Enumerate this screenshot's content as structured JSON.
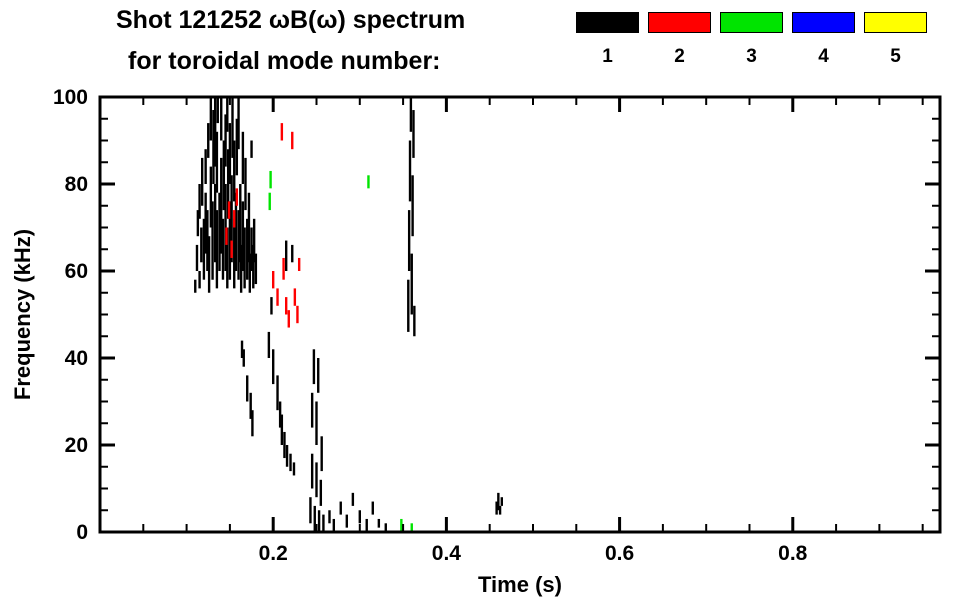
{
  "header": {
    "title": "Shot 121252 ωB(ω) spectrum",
    "subtitle": "for toroidal mode number:"
  },
  "legend": {
    "items": [
      {
        "label": "1",
        "color": "#000000"
      },
      {
        "label": "2",
        "color": "#ff0000"
      },
      {
        "label": "3",
        "color": "#00e400"
      },
      {
        "label": "4",
        "color": "#0000ff"
      },
      {
        "label": "5",
        "color": "#ffff00"
      }
    ]
  },
  "chart_data": {
    "type": "scatter",
    "title": "Shot 121252 ωB(ω) spectrum for toroidal mode number:",
    "xlabel": "Time (s)",
    "ylabel": "Frequency (kHz)",
    "xlim": [
      0,
      0.97
    ],
    "ylim": [
      0,
      100
    ],
    "xticks": [
      0.2,
      0.4,
      0.6,
      0.8
    ],
    "xtick_labels": [
      "0.2",
      "0.4",
      "0.6",
      "0.8"
    ],
    "yticks": [
      0,
      20,
      40,
      60,
      80,
      100
    ],
    "ytick_labels": [
      "0",
      "20",
      "40",
      "60",
      "80",
      "100"
    ],
    "x_minor_step": 0.05,
    "y_minor_step": 5,
    "grid": false,
    "legend_position": "top-right",
    "stroke_note": "each stroke is a short vertical dash [time_s, freq_lo_kHz, freq_hi_kHz]",
    "series": [
      {
        "name": "n=1",
        "color": "#000000",
        "strokes": [
          [
            0.11,
            55,
            58
          ],
          [
            0.112,
            60,
            66
          ],
          [
            0.113,
            68,
            74
          ],
          [
            0.115,
            72,
            80
          ],
          [
            0.115,
            56,
            60
          ],
          [
            0.117,
            62,
            70
          ],
          [
            0.118,
            75,
            86
          ],
          [
            0.12,
            58,
            72
          ],
          [
            0.122,
            64,
            78
          ],
          [
            0.122,
            80,
            88
          ],
          [
            0.124,
            60,
            74
          ],
          [
            0.125,
            86,
            94
          ],
          [
            0.126,
            55,
            68
          ],
          [
            0.128,
            70,
            84
          ],
          [
            0.128,
            90,
            100
          ],
          [
            0.13,
            58,
            76
          ],
          [
            0.131,
            80,
            97
          ],
          [
            0.133,
            62,
            80
          ],
          [
            0.133,
            84,
            100
          ],
          [
            0.135,
            56,
            74
          ],
          [
            0.135,
            78,
            92
          ],
          [
            0.136,
            94,
            100
          ],
          [
            0.138,
            60,
            78
          ],
          [
            0.14,
            64,
            86
          ],
          [
            0.14,
            90,
            100
          ],
          [
            0.142,
            58,
            72
          ],
          [
            0.143,
            74,
            90
          ],
          [
            0.145,
            60,
            80
          ],
          [
            0.145,
            84,
            96
          ],
          [
            0.147,
            56,
            70
          ],
          [
            0.147,
            92,
            100
          ],
          [
            0.148,
            72,
            88
          ],
          [
            0.15,
            58,
            76
          ],
          [
            0.15,
            80,
            94
          ],
          [
            0.152,
            62,
            82
          ],
          [
            0.153,
            86,
            100
          ],
          [
            0.155,
            56,
            72
          ],
          [
            0.155,
            76,
            90
          ],
          [
            0.157,
            60,
            78
          ],
          [
            0.158,
            82,
            95
          ],
          [
            0.16,
            58,
            74
          ],
          [
            0.16,
            88,
            100
          ],
          [
            0.162,
            62,
            80
          ],
          [
            0.163,
            55,
            66
          ],
          [
            0.165,
            60,
            76
          ],
          [
            0.165,
            80,
            92
          ],
          [
            0.167,
            56,
            70
          ],
          [
            0.168,
            74,
            86
          ],
          [
            0.17,
            58,
            72
          ],
          [
            0.172,
            62,
            78
          ],
          [
            0.173,
            55,
            64
          ],
          [
            0.175,
            60,
            70
          ],
          [
            0.175,
            86,
            90
          ],
          [
            0.177,
            56,
            66
          ],
          [
            0.178,
            62,
            72
          ],
          [
            0.18,
            57,
            64
          ],
          [
            0.164,
            40,
            44
          ],
          [
            0.166,
            38,
            42
          ],
          [
            0.17,
            30,
            36
          ],
          [
            0.174,
            26,
            32
          ],
          [
            0.176,
            22,
            28
          ],
          [
            0.195,
            40,
            46
          ],
          [
            0.198,
            50,
            54
          ],
          [
            0.2,
            34,
            42
          ],
          [
            0.205,
            28,
            36
          ],
          [
            0.208,
            24,
            30
          ],
          [
            0.21,
            20,
            27
          ],
          [
            0.213,
            17,
            23
          ],
          [
            0.215,
            60,
            67
          ],
          [
            0.216,
            15,
            20
          ],
          [
            0.22,
            14,
            18
          ],
          [
            0.222,
            62,
            66
          ],
          [
            0.224,
            13,
            16
          ],
          [
            0.243,
            2,
            8
          ],
          [
            0.245,
            10,
            18
          ],
          [
            0.245,
            24,
            32
          ],
          [
            0.247,
            34,
            42
          ],
          [
            0.248,
            0,
            6
          ],
          [
            0.25,
            8,
            16
          ],
          [
            0.25,
            20,
            30
          ],
          [
            0.252,
            32,
            40
          ],
          [
            0.253,
            0,
            5
          ],
          [
            0.255,
            6,
            12
          ],
          [
            0.256,
            14,
            22
          ],
          [
            0.258,
            0,
            4
          ],
          [
            0.265,
            2,
            5
          ],
          [
            0.27,
            0,
            3
          ],
          [
            0.278,
            4,
            7
          ],
          [
            0.285,
            1,
            4
          ],
          [
            0.292,
            6,
            9
          ],
          [
            0.3,
            2,
            5
          ],
          [
            0.308,
            0,
            3
          ],
          [
            0.315,
            4,
            7
          ],
          [
            0.322,
            1,
            3
          ],
          [
            0.33,
            0,
            2
          ],
          [
            0.356,
            46,
            58
          ],
          [
            0.357,
            60,
            74
          ],
          [
            0.358,
            76,
            90
          ],
          [
            0.359,
            92,
            100
          ],
          [
            0.36,
            50,
            64
          ],
          [
            0.361,
            68,
            82
          ],
          [
            0.362,
            86,
            97
          ],
          [
            0.363,
            45,
            52
          ],
          [
            0.458,
            4,
            7
          ],
          [
            0.46,
            5,
            9
          ],
          [
            0.462,
            4,
            6
          ],
          [
            0.464,
            6,
            8
          ]
        ]
      },
      {
        "name": "n=2",
        "color": "#ff0000",
        "strokes": [
          [
            0.146,
            66,
            70
          ],
          [
            0.149,
            72,
            76
          ],
          [
            0.152,
            63,
            67
          ],
          [
            0.155,
            70,
            74
          ],
          [
            0.158,
            75,
            79
          ],
          [
            0.2,
            56,
            60
          ],
          [
            0.205,
            52,
            56
          ],
          [
            0.21,
            90,
            94
          ],
          [
            0.212,
            58,
            63
          ],
          [
            0.215,
            50,
            54
          ],
          [
            0.218,
            47,
            51
          ],
          [
            0.222,
            88,
            92
          ],
          [
            0.225,
            52,
            56
          ],
          [
            0.228,
            48,
            52
          ],
          [
            0.23,
            60,
            63
          ]
        ]
      },
      {
        "name": "n=3",
        "color": "#00e400",
        "strokes": [
          [
            0.196,
            74,
            78
          ],
          [
            0.197,
            79,
            83
          ],
          [
            0.31,
            79,
            82
          ],
          [
            0.348,
            0,
            3
          ],
          [
            0.36,
            0,
            2
          ]
        ]
      },
      {
        "name": "n=4",
        "color": "#0000ff",
        "strokes": []
      },
      {
        "name": "n=5",
        "color": "#ffff00",
        "strokes": []
      }
    ]
  }
}
